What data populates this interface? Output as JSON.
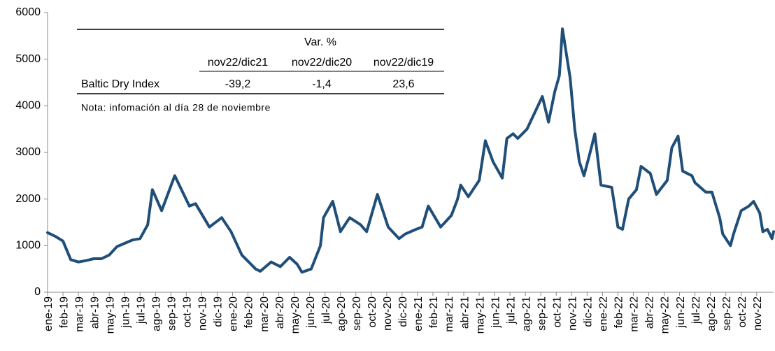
{
  "chart_data": {
    "type": "line",
    "series": [
      {
        "name": "Baltic Dry Index",
        "color": "#1f4e79",
        "x": [
          0,
          0.5,
          1,
          1.5,
          2,
          2.5,
          3,
          3.5,
          4,
          4.5,
          5,
          5.5,
          6,
          6.5,
          6.8,
          7.4,
          8.25,
          9.2,
          9.6,
          10.5,
          11.3,
          11.9,
          12.6,
          13.5,
          13.8,
          14.5,
          15.1,
          15.7,
          16.2,
          16.5,
          17.1,
          17.7,
          17.9,
          18.5,
          19.0,
          19.6,
          20.3,
          20.7,
          21.4,
          22.1,
          22.8,
          23.2,
          23.9,
          24.3,
          24.7,
          25.5,
          26.2,
          26.6,
          26.8,
          27.3,
          28,
          28.4,
          28.9,
          29.5,
          29.8,
          30.2,
          30.5,
          31.1,
          32.1,
          32.5,
          32.9,
          33.2,
          33.4,
          33.9,
          34.2,
          34.5,
          34.8,
          35.2,
          35.5,
          35.9,
          36.6,
          37.0,
          37.3,
          37.7,
          38.2,
          38.5,
          39.1,
          39.5,
          40.2,
          40.5,
          40.9,
          41.2,
          41.8,
          42.0,
          42.7,
          43.1,
          43.6,
          43.8,
          44.3,
          44.5,
          45.0,
          45.5,
          45.8,
          46.2,
          46.4,
          46.7,
          47.0,
          47.1
        ],
        "values": [
          1280,
          1200,
          1100,
          700,
          650,
          680,
          720,
          720,
          800,
          980,
          1050,
          1120,
          1150,
          1450,
          2200,
          1750,
          2500,
          1850,
          1900,
          1400,
          1600,
          1300,
          800,
          500,
          450,
          650,
          550,
          750,
          600,
          430,
          500,
          1000,
          1600,
          1950,
          1300,
          1600,
          1450,
          1300,
          2100,
          1400,
          1150,
          1250,
          1350,
          1400,
          1850,
          1400,
          1650,
          2000,
          2300,
          2050,
          2400,
          3250,
          2800,
          2450,
          3300,
          3400,
          3300,
          3500,
          4200,
          3650,
          4300,
          4650,
          5650,
          4600,
          3500,
          2800,
          2500,
          3000,
          3400,
          2300,
          2250,
          1400,
          1350,
          2000,
          2200,
          2700,
          2550,
          2100,
          2400,
          3100,
          3350,
          2600,
          2500,
          2350,
          2150,
          2150,
          1600,
          1250,
          1000,
          1250,
          1750,
          1850,
          1950,
          1700,
          1300,
          1350,
          1150,
          1300
        ]
      }
    ],
    "xlim": [
      0,
      47.1
    ],
    "xticks": [
      {
        "value": 0,
        "label": "ene-19"
      },
      {
        "value": 1,
        "label": "feb-19"
      },
      {
        "value": 2,
        "label": "mar-19"
      },
      {
        "value": 3,
        "label": "abr-19"
      },
      {
        "value": 4,
        "label": "may-19"
      },
      {
        "value": 5,
        "label": "jun-19"
      },
      {
        "value": 6,
        "label": "jul-19"
      },
      {
        "value": 7,
        "label": "ago-19"
      },
      {
        "value": 8,
        "label": "sep-19"
      },
      {
        "value": 9,
        "label": "oct-19"
      },
      {
        "value": 10,
        "label": "nov-19"
      },
      {
        "value": 11,
        "label": "dic-19"
      },
      {
        "value": 12,
        "label": "ene-20"
      },
      {
        "value": 13,
        "label": "feb-20"
      },
      {
        "value": 14,
        "label": "mar-20"
      },
      {
        "value": 15,
        "label": "abr-20"
      },
      {
        "value": 16,
        "label": "may-20"
      },
      {
        "value": 17,
        "label": "jun-20"
      },
      {
        "value": 18,
        "label": "jul-20"
      },
      {
        "value": 19,
        "label": "ago-20"
      },
      {
        "value": 20,
        "label": "sep-20"
      },
      {
        "value": 21,
        "label": "oct-20"
      },
      {
        "value": 22,
        "label": "nov-20"
      },
      {
        "value": 23,
        "label": "dic-20"
      },
      {
        "value": 24,
        "label": "ene-21"
      },
      {
        "value": 25,
        "label": "feb-21"
      },
      {
        "value": 26,
        "label": "mar-21"
      },
      {
        "value": 27,
        "label": "abr-21"
      },
      {
        "value": 28,
        "label": "may-21"
      },
      {
        "value": 29,
        "label": "jun-21"
      },
      {
        "value": 30,
        "label": "jul-21"
      },
      {
        "value": 31,
        "label": "ago-21"
      },
      {
        "value": 32,
        "label": "sep-21"
      },
      {
        "value": 33,
        "label": "oct-21"
      },
      {
        "value": 34,
        "label": "nov-21"
      },
      {
        "value": 35,
        "label": "dic-21"
      },
      {
        "value": 36,
        "label": "ene-22"
      },
      {
        "value": 37,
        "label": "feb-22"
      },
      {
        "value": 38,
        "label": "mar-22"
      },
      {
        "value": 39,
        "label": "abr-22"
      },
      {
        "value": 40,
        "label": "may-22"
      },
      {
        "value": 41,
        "label": "jun-22"
      },
      {
        "value": 42,
        "label": "jul-22"
      },
      {
        "value": 43,
        "label": "ago-22"
      },
      {
        "value": 44,
        "label": "sep-22"
      },
      {
        "value": 45,
        "label": "oct-22"
      },
      {
        "value": 46,
        "label": "nov-22"
      }
    ],
    "ylim": [
      0,
      6000
    ],
    "yticks": [
      0,
      1000,
      2000,
      3000,
      4000,
      5000,
      6000
    ],
    "grid": false
  },
  "table": {
    "group_header": "Var. %",
    "columns": [
      "nov22/dic21",
      "nov22/dic20",
      "nov22/dic19"
    ],
    "rows": [
      {
        "label": "Baltic Dry Index",
        "values": [
          "-39,2",
          "-1,4",
          "23,6"
        ]
      }
    ],
    "note": "Nota: infomación al día 28 de noviembre"
  }
}
